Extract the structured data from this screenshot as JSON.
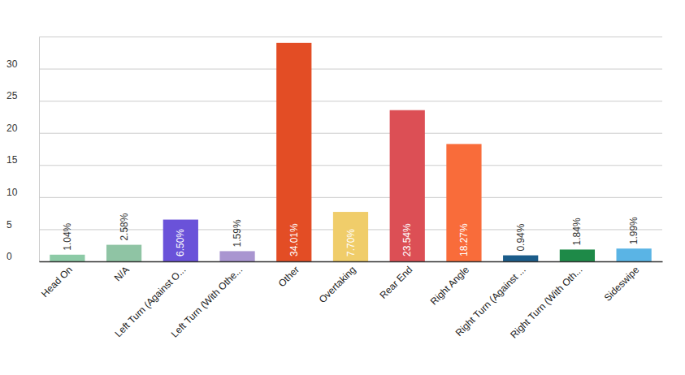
{
  "chart_data": {
    "type": "bar",
    "categories": [
      "Head On",
      "N/A",
      "Left Turn (Against O...",
      "Left Turn (With Othe...",
      "Other",
      "Overtaking",
      "Rear End",
      "Right Angle",
      "Right Turn (Against ...",
      "Right Turn (With Oth...",
      "Sideswipe"
    ],
    "values": [
      1.04,
      2.58,
      6.5,
      1.59,
      34.01,
      7.7,
      23.54,
      18.27,
      0.94,
      1.84,
      1.99
    ],
    "value_labels": [
      "1.04%",
      "2.58%",
      "6.50%",
      "1.59%",
      "34.01%",
      "7.70%",
      "23.54%",
      "18.27%",
      "0.94%",
      "1.84%",
      "1.99%"
    ],
    "colors": [
      "#8ccaa6",
      "#8fc4a4",
      "#6a52d9",
      "#a995d0",
      "#e34d25",
      "#f0cd6a",
      "#dc4f55",
      "#f96c3a",
      "#1b5c8a",
      "#1e8a48",
      "#5ab4e5"
    ],
    "ylim": [
      0,
      35
    ],
    "yticks": [
      0,
      5,
      10,
      15,
      20,
      25,
      30
    ],
    "grid": true,
    "data_labels": true
  }
}
